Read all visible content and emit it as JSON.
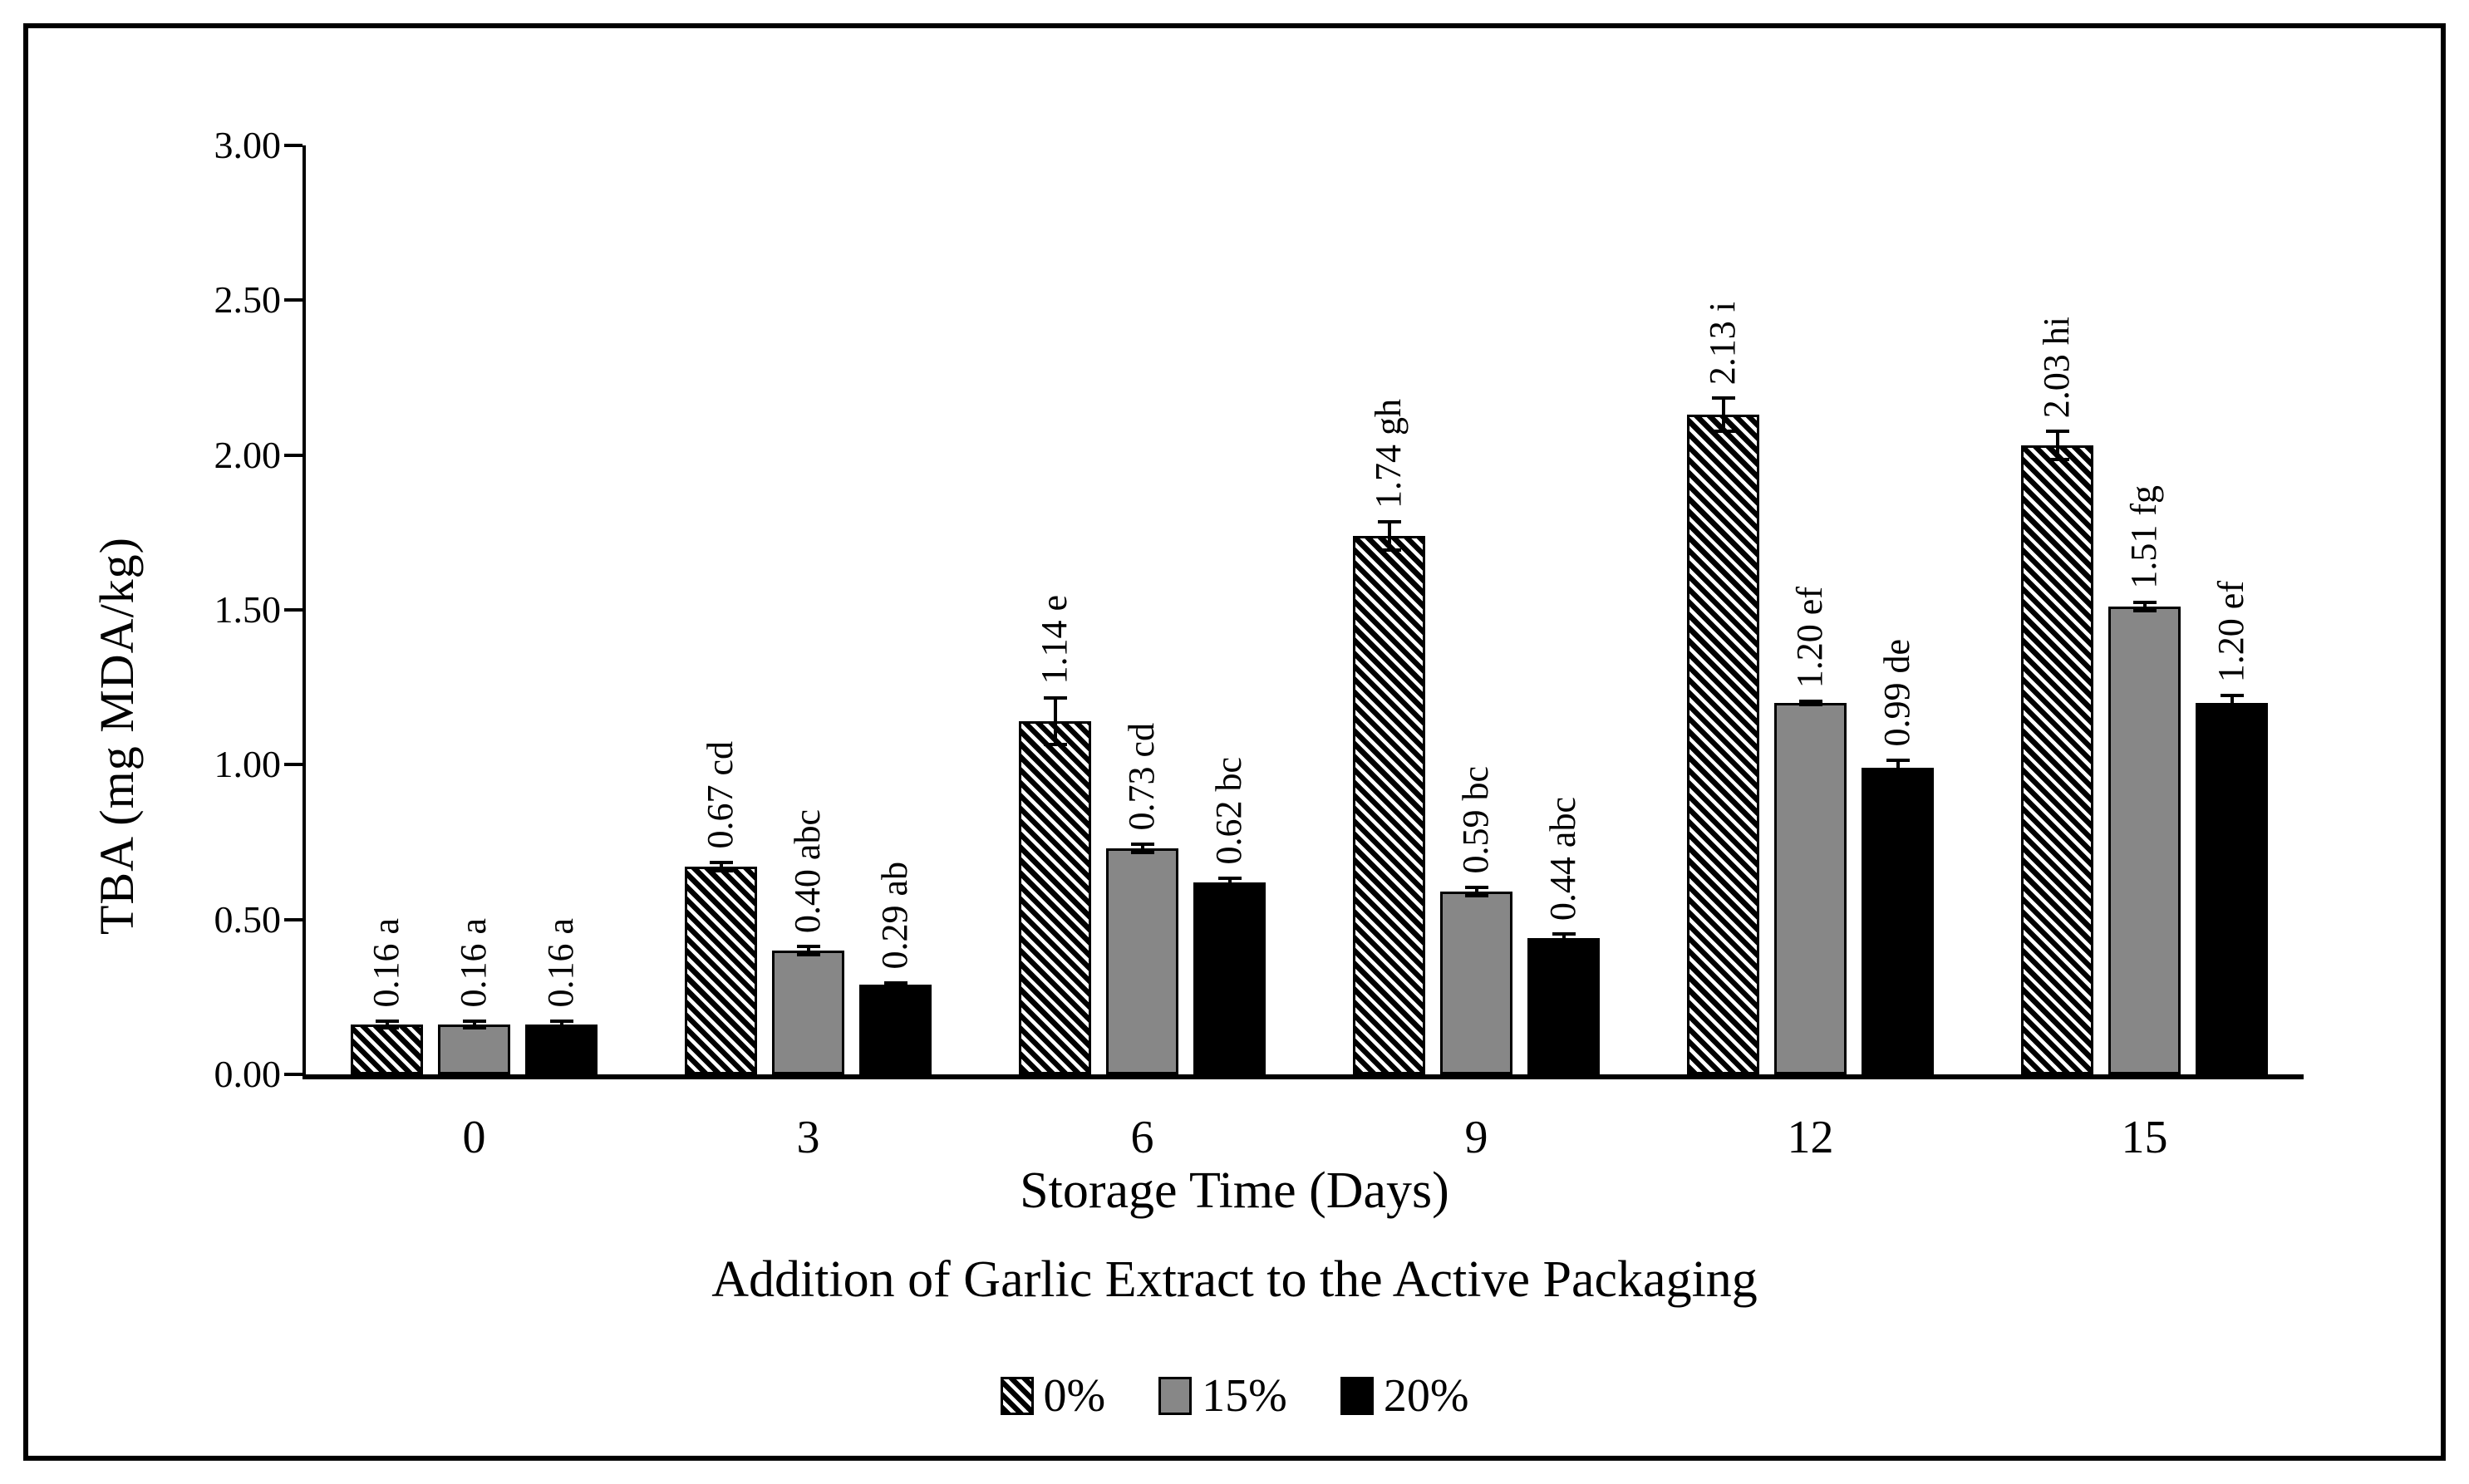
{
  "figure": {
    "y_axis_title": "TBA (mg MDA/kg)",
    "x_axis_title": "Storage Time (Days)",
    "subtitle": "Addition of Garlic Extract to the Active Packaging",
    "colors": {
      "gray_series": "#878787",
      "black_series": "#000000",
      "axis": "#000000"
    }
  },
  "chart_data": {
    "type": "bar",
    "title": "",
    "xlabel": "Storage Time (Days)",
    "xlabel_secondary": "Addition of Garlic Extract to the Active Packaging",
    "ylabel": "TBA (mg MDA/kg)",
    "ylim": [
      0,
      3.0
    ],
    "ytick_step": 0.5,
    "ytick_labels": [
      "0.00",
      "0.50",
      "1.00",
      "1.50",
      "2.00",
      "2.50",
      "3.00"
    ],
    "categories": [
      "0",
      "3",
      "6",
      "9",
      "12",
      "15"
    ],
    "grid": false,
    "legend_position": "bottom",
    "series": [
      {
        "name": "0%",
        "fill": "hatch",
        "values": [
          0.16,
          0.67,
          1.14,
          1.74,
          2.13,
          2.03
        ],
        "errors": [
          0.015,
          0.02,
          0.08,
          0.05,
          0.06,
          0.05
        ],
        "labels": [
          "0.16 a",
          "0.67 cd",
          "1.14 e",
          "1.74 gh",
          "2.13 i",
          "2.03 hi"
        ]
      },
      {
        "name": "15%",
        "fill": "#878787",
        "values": [
          0.16,
          0.4,
          0.73,
          0.59,
          1.2,
          1.51
        ],
        "errors": [
          0.015,
          0.02,
          0.02,
          0.02,
          0.01,
          0.02
        ],
        "labels": [
          "0.16 a",
          "0.40 abc",
          "0.73 cd",
          "0.59 bc",
          "1.20 ef",
          "1.51 fg"
        ]
      },
      {
        "name": "20%",
        "fill": "#000000",
        "values": [
          0.16,
          0.29,
          0.62,
          0.44,
          0.99,
          1.2
        ],
        "errors": [
          0.015,
          0.01,
          0.02,
          0.02,
          0.03,
          0.03
        ],
        "labels": [
          "0.16 a",
          "0.29 ab",
          "0.62 bc",
          "0.44 abc",
          "0.99 de",
          "1.20 ef"
        ]
      }
    ]
  }
}
